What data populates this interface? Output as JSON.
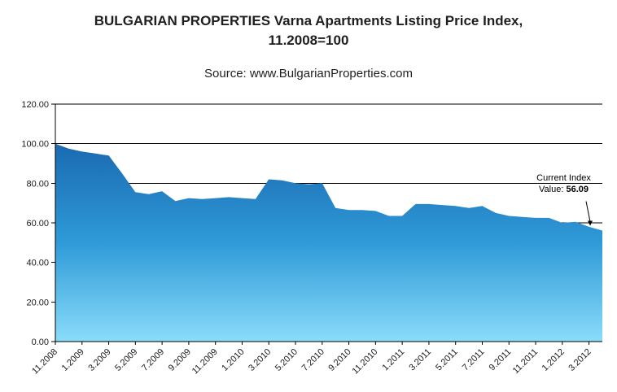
{
  "header": {
    "title_line1": "BULGARIAN PROPERTIES Varna Apartments Listing Price Index,",
    "title_line2": "11.2008=100",
    "source": "Source: www.BulgarianProperties.com"
  },
  "annotation": {
    "line1": "Current Index",
    "value_label": "Value: ",
    "value": "56.09"
  },
  "chart_data": {
    "type": "area",
    "title": "BULGARIAN PROPERTIES Varna Apartments Listing Price Index, 11.2008=100",
    "subtitle": "Source: www.BulgarianProperties.com",
    "xlabel": "",
    "ylabel": "",
    "ylim": [
      0,
      120
    ],
    "y_ticks": [
      0,
      20,
      40,
      60,
      80,
      100,
      120
    ],
    "x_label_step": 2,
    "grid": "horizontal-black",
    "legend": "none",
    "current_index_value": 56.09,
    "months": [
      "11.2008",
      "12.2008",
      "1.2009",
      "2.2009",
      "3.2009",
      "4.2009",
      "5.2009",
      "6.2009",
      "7.2009",
      "8.2009",
      "9.2009",
      "10.2009",
      "11.2009",
      "12.2009",
      "1.2010",
      "2.2010",
      "3.2010",
      "4.2010",
      "5.2010",
      "6.2010",
      "7.2010",
      "8.2010",
      "9.2010",
      "10.2010",
      "11.2010",
      "12.2010",
      "1.2011",
      "2.2011",
      "3.2011",
      "4.2011",
      "5.2011",
      "6.2011",
      "7.2011",
      "8.2011",
      "9.2011",
      "10.2011",
      "11.2011",
      "12.2011",
      "1.2012",
      "2.2012",
      "3.2012",
      "4.2012"
    ],
    "values": [
      100,
      97.5,
      96,
      95,
      94,
      85,
      75.5,
      74.5,
      76,
      71,
      72.5,
      72,
      72.5,
      73,
      72.5,
      72,
      82,
      81.5,
      80,
      79.5,
      80,
      67.5,
      66.5,
      66.5,
      66,
      63.5,
      63.5,
      69.5,
      69.5,
      69,
      68.5,
      67.5,
      68.5,
      65,
      63.5,
      63,
      62.5,
      62.5,
      60,
      60.5,
      58,
      56.09
    ],
    "colors": {
      "gradient": [
        "#1a6ab0",
        "#2f9ad8",
        "#8adcfa"
      ],
      "gridline": "#000000",
      "axis": "#000000",
      "text": "#1a1a1a"
    }
  }
}
